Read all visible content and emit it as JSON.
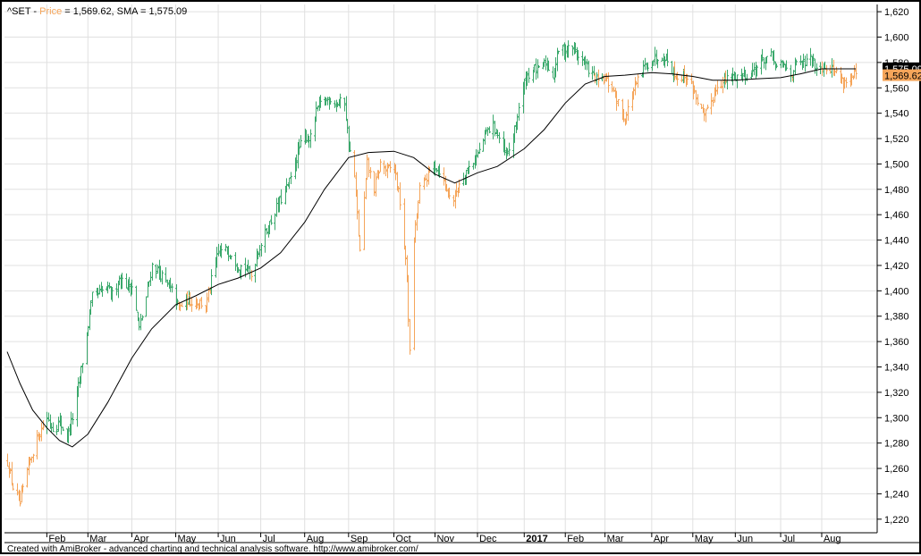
{
  "header": {
    "symbol": "^SET",
    "sep1": " - ",
    "price_label": "Price",
    "price_eq": " = 1,569.62, ",
    "sma_label": "SMA",
    "sma_eq": " = 1,575.09"
  },
  "footer_text": "Created with AmiBroker - advanced charting and technical analysis software. http://www.amibroker.com/",
  "colors": {
    "up": "#3aa86b",
    "down": "#f5a55a",
    "sma": "#000000",
    "grid": "#e0e0e0",
    "price_label": "#f5a55a"
  },
  "chart_data": {
    "type": "line",
    "chart_style": "ohlc-bars with simple moving average",
    "x_range": [
      "2016-01-04",
      "2017-08-25"
    ],
    "ylim": [
      1210,
      1625
    ],
    "y_ticks": [
      1220,
      1240,
      1260,
      1280,
      1300,
      1320,
      1340,
      1360,
      1380,
      1400,
      1420,
      1440,
      1460,
      1480,
      1500,
      1520,
      1540,
      1560,
      1580,
      1600,
      1620
    ],
    "y_tick_labels": [
      "1,220",
      "1,240",
      "1,260",
      "1,280",
      "1,300",
      "1,320",
      "1,340",
      "1,360",
      "1,380",
      "1,400",
      "1,420",
      "1,440",
      "1,460",
      "1,480",
      "1,500",
      "1,520",
      "1,540",
      "1,560",
      "1,580",
      "1,600",
      "1,620"
    ],
    "x_ticks": [
      {
        "date": "2016-02-01",
        "label": "Feb",
        "bold": false
      },
      {
        "date": "2016-03-01",
        "label": "Mar",
        "bold": false
      },
      {
        "date": "2016-04-01",
        "label": "Apr",
        "bold": false
      },
      {
        "date": "2016-05-02",
        "label": "May",
        "bold": false
      },
      {
        "date": "2016-06-01",
        "label": "Jun",
        "bold": false
      },
      {
        "date": "2016-07-01",
        "label": "Jul",
        "bold": false
      },
      {
        "date": "2016-08-01",
        "label": "Aug",
        "bold": false
      },
      {
        "date": "2016-09-01",
        "label": "Sep",
        "bold": false
      },
      {
        "date": "2016-10-03",
        "label": "Oct",
        "bold": false
      },
      {
        "date": "2016-11-01",
        "label": "Nov",
        "bold": false
      },
      {
        "date": "2016-12-01",
        "label": "Dec",
        "bold": false
      },
      {
        "date": "2017-01-03",
        "label": "2017",
        "bold": true
      },
      {
        "date": "2017-02-01",
        "label": "Feb",
        "bold": false
      },
      {
        "date": "2017-03-01",
        "label": "Mar",
        "bold": false
      },
      {
        "date": "2017-04-03",
        "label": "Apr",
        "bold": false
      },
      {
        "date": "2017-05-02",
        "label": "May",
        "bold": false
      },
      {
        "date": "2017-06-01",
        "label": "Jun",
        "bold": false
      },
      {
        "date": "2017-07-03",
        "label": "Jul",
        "bold": false
      },
      {
        "date": "2017-08-01",
        "label": "Aug",
        "bold": false
      }
    ],
    "series": [
      {
        "name": "Price",
        "last_value": 1569.62,
        "last_label": "1,569.62",
        "points": [
          {
            "x": "2016-01-04",
            "y": 1265
          },
          {
            "x": "2016-01-08",
            "y": 1245
          },
          {
            "x": "2016-01-13",
            "y": 1232
          },
          {
            "x": "2016-01-18",
            "y": 1258
          },
          {
            "x": "2016-01-22",
            "y": 1274
          },
          {
            "x": "2016-01-27",
            "y": 1289
          },
          {
            "x": "2016-02-01",
            "y": 1300
          },
          {
            "x": "2016-02-05",
            "y": 1292
          },
          {
            "x": "2016-02-10",
            "y": 1296
          },
          {
            "x": "2016-02-15",
            "y": 1285
          },
          {
            "x": "2016-02-19",
            "y": 1300
          },
          {
            "x": "2016-02-24",
            "y": 1330
          },
          {
            "x": "2016-02-29",
            "y": 1366
          },
          {
            "x": "2016-03-04",
            "y": 1395
          },
          {
            "x": "2016-03-09",
            "y": 1398
          },
          {
            "x": "2016-03-14",
            "y": 1402
          },
          {
            "x": "2016-03-18",
            "y": 1397
          },
          {
            "x": "2016-03-23",
            "y": 1410
          },
          {
            "x": "2016-03-28",
            "y": 1405
          },
          {
            "x": "2016-04-01",
            "y": 1404
          },
          {
            "x": "2016-04-06",
            "y": 1370
          },
          {
            "x": "2016-04-11",
            "y": 1395
          },
          {
            "x": "2016-04-15",
            "y": 1420
          },
          {
            "x": "2016-04-20",
            "y": 1415
          },
          {
            "x": "2016-04-25",
            "y": 1405
          },
          {
            "x": "2016-04-29",
            "y": 1400
          },
          {
            "x": "2016-05-04",
            "y": 1386
          },
          {
            "x": "2016-05-09",
            "y": 1393
          },
          {
            "x": "2016-05-13",
            "y": 1392
          },
          {
            "x": "2016-05-18",
            "y": 1392
          },
          {
            "x": "2016-05-23",
            "y": 1387
          },
          {
            "x": "2016-05-27",
            "y": 1408
          },
          {
            "x": "2016-06-01",
            "y": 1430
          },
          {
            "x": "2016-06-06",
            "y": 1432
          },
          {
            "x": "2016-06-10",
            "y": 1430
          },
          {
            "x": "2016-06-15",
            "y": 1420
          },
          {
            "x": "2016-06-20",
            "y": 1418
          },
          {
            "x": "2016-06-24",
            "y": 1412
          },
          {
            "x": "2016-06-29",
            "y": 1432
          },
          {
            "x": "2016-07-04",
            "y": 1445
          },
          {
            "x": "2016-07-08",
            "y": 1455
          },
          {
            "x": "2016-07-13",
            "y": 1468
          },
          {
            "x": "2016-07-18",
            "y": 1478
          },
          {
            "x": "2016-07-22",
            "y": 1488
          },
          {
            "x": "2016-07-27",
            "y": 1510
          },
          {
            "x": "2016-08-01",
            "y": 1522
          },
          {
            "x": "2016-08-05",
            "y": 1520
          },
          {
            "x": "2016-08-10",
            "y": 1545
          },
          {
            "x": "2016-08-15",
            "y": 1550
          },
          {
            "x": "2016-08-19",
            "y": 1551
          },
          {
            "x": "2016-08-24",
            "y": 1548
          },
          {
            "x": "2016-08-29",
            "y": 1549
          },
          {
            "x": "2016-09-01",
            "y": 1515
          },
          {
            "x": "2016-09-05",
            "y": 1490
          },
          {
            "x": "2016-09-09",
            "y": 1430
          },
          {
            "x": "2016-09-14",
            "y": 1500
          },
          {
            "x": "2016-09-19",
            "y": 1480
          },
          {
            "x": "2016-09-23",
            "y": 1500
          },
          {
            "x": "2016-09-28",
            "y": 1495
          },
          {
            "x": "2016-10-03",
            "y": 1498
          },
          {
            "x": "2016-10-07",
            "y": 1470
          },
          {
            "x": "2016-10-12",
            "y": 1410
          },
          {
            "x": "2016-10-14",
            "y": 1350
          },
          {
            "x": "2016-10-17",
            "y": 1440
          },
          {
            "x": "2016-10-21",
            "y": 1480
          },
          {
            "x": "2016-10-26",
            "y": 1490
          },
          {
            "x": "2016-10-31",
            "y": 1500
          },
          {
            "x": "2016-11-04",
            "y": 1495
          },
          {
            "x": "2016-11-09",
            "y": 1480
          },
          {
            "x": "2016-11-14",
            "y": 1472
          },
          {
            "x": "2016-11-18",
            "y": 1485
          },
          {
            "x": "2016-11-23",
            "y": 1495
          },
          {
            "x": "2016-11-28",
            "y": 1502
          },
          {
            "x": "2016-12-02",
            "y": 1510
          },
          {
            "x": "2016-12-07",
            "y": 1525
          },
          {
            "x": "2016-12-12",
            "y": 1530
          },
          {
            "x": "2016-12-16",
            "y": 1520
          },
          {
            "x": "2016-12-21",
            "y": 1505
          },
          {
            "x": "2016-12-26",
            "y": 1520
          },
          {
            "x": "2016-12-30",
            "y": 1545
          },
          {
            "x": "2017-01-04",
            "y": 1568
          },
          {
            "x": "2017-01-09",
            "y": 1575
          },
          {
            "x": "2017-01-13",
            "y": 1573
          },
          {
            "x": "2017-01-18",
            "y": 1580
          },
          {
            "x": "2017-01-23",
            "y": 1570
          },
          {
            "x": "2017-01-27",
            "y": 1590
          },
          {
            "x": "2017-02-01",
            "y": 1590
          },
          {
            "x": "2017-02-06",
            "y": 1592
          },
          {
            "x": "2017-02-10",
            "y": 1586
          },
          {
            "x": "2017-02-15",
            "y": 1578
          },
          {
            "x": "2017-02-20",
            "y": 1570
          },
          {
            "x": "2017-02-24",
            "y": 1565
          },
          {
            "x": "2017-03-01",
            "y": 1566
          },
          {
            "x": "2017-03-06",
            "y": 1560
          },
          {
            "x": "2017-03-10",
            "y": 1548
          },
          {
            "x": "2017-03-15",
            "y": 1535
          },
          {
            "x": "2017-03-20",
            "y": 1555
          },
          {
            "x": "2017-03-24",
            "y": 1565
          },
          {
            "x": "2017-03-29",
            "y": 1577
          },
          {
            "x": "2017-04-03",
            "y": 1582
          },
          {
            "x": "2017-04-07",
            "y": 1585
          },
          {
            "x": "2017-04-12",
            "y": 1585
          },
          {
            "x": "2017-04-17",
            "y": 1575
          },
          {
            "x": "2017-04-21",
            "y": 1568
          },
          {
            "x": "2017-04-26",
            "y": 1570
          },
          {
            "x": "2017-05-01",
            "y": 1562
          },
          {
            "x": "2017-05-05",
            "y": 1550
          },
          {
            "x": "2017-05-10",
            "y": 1536
          },
          {
            "x": "2017-05-15",
            "y": 1550
          },
          {
            "x": "2017-05-19",
            "y": 1563
          },
          {
            "x": "2017-05-24",
            "y": 1565
          },
          {
            "x": "2017-05-29",
            "y": 1568
          },
          {
            "x": "2017-06-02",
            "y": 1570
          },
          {
            "x": "2017-06-07",
            "y": 1570
          },
          {
            "x": "2017-06-12",
            "y": 1572
          },
          {
            "x": "2017-06-16",
            "y": 1577
          },
          {
            "x": "2017-06-21",
            "y": 1583
          },
          {
            "x": "2017-06-26",
            "y": 1585
          },
          {
            "x": "2017-06-30",
            "y": 1576
          },
          {
            "x": "2017-07-05",
            "y": 1578
          },
          {
            "x": "2017-07-10",
            "y": 1571
          },
          {
            "x": "2017-07-14",
            "y": 1578
          },
          {
            "x": "2017-07-19",
            "y": 1579
          },
          {
            "x": "2017-07-24",
            "y": 1582
          },
          {
            "x": "2017-07-28",
            "y": 1577
          },
          {
            "x": "2017-08-02",
            "y": 1578
          },
          {
            "x": "2017-08-07",
            "y": 1576
          },
          {
            "x": "2017-08-11",
            "y": 1572
          },
          {
            "x": "2017-08-16",
            "y": 1565
          },
          {
            "x": "2017-08-21",
            "y": 1567
          },
          {
            "x": "2017-08-25",
            "y": 1570
          }
        ]
      },
      {
        "name": "SMA",
        "last_value": 1575.09,
        "last_label": "1,575.09",
        "points": [
          {
            "x": "2016-01-04",
            "y": 1352
          },
          {
            "x": "2016-01-13",
            "y": 1327
          },
          {
            "x": "2016-01-22",
            "y": 1306
          },
          {
            "x": "2016-02-01",
            "y": 1292
          },
          {
            "x": "2016-02-10",
            "y": 1282
          },
          {
            "x": "2016-02-19",
            "y": 1277
          },
          {
            "x": "2016-03-01",
            "y": 1287
          },
          {
            "x": "2016-03-15",
            "y": 1312
          },
          {
            "x": "2016-04-01",
            "y": 1347
          },
          {
            "x": "2016-04-15",
            "y": 1370
          },
          {
            "x": "2016-05-02",
            "y": 1389
          },
          {
            "x": "2016-05-16",
            "y": 1396
          },
          {
            "x": "2016-06-01",
            "y": 1405
          },
          {
            "x": "2016-06-15",
            "y": 1410
          },
          {
            "x": "2016-07-01",
            "y": 1418
          },
          {
            "x": "2016-07-15",
            "y": 1430
          },
          {
            "x": "2016-08-01",
            "y": 1454
          },
          {
            "x": "2016-08-15",
            "y": 1480
          },
          {
            "x": "2016-09-01",
            "y": 1505
          },
          {
            "x": "2016-09-15",
            "y": 1509
          },
          {
            "x": "2016-10-03",
            "y": 1510
          },
          {
            "x": "2016-10-17",
            "y": 1505
          },
          {
            "x": "2016-11-01",
            "y": 1492
          },
          {
            "x": "2016-11-15",
            "y": 1485
          },
          {
            "x": "2016-12-01",
            "y": 1493
          },
          {
            "x": "2016-12-15",
            "y": 1498
          },
          {
            "x": "2017-01-03",
            "y": 1512
          },
          {
            "x": "2017-01-17",
            "y": 1527
          },
          {
            "x": "2017-02-01",
            "y": 1548
          },
          {
            "x": "2017-02-15",
            "y": 1563
          },
          {
            "x": "2017-03-01",
            "y": 1569
          },
          {
            "x": "2017-03-15",
            "y": 1570
          },
          {
            "x": "2017-04-03",
            "y": 1572
          },
          {
            "x": "2017-04-17",
            "y": 1571
          },
          {
            "x": "2017-05-02",
            "y": 1569
          },
          {
            "x": "2017-05-16",
            "y": 1566
          },
          {
            "x": "2017-06-01",
            "y": 1566
          },
          {
            "x": "2017-06-15",
            "y": 1567
          },
          {
            "x": "2017-07-03",
            "y": 1568
          },
          {
            "x": "2017-07-17",
            "y": 1571
          },
          {
            "x": "2017-08-01",
            "y": 1575
          },
          {
            "x": "2017-08-25",
            "y": 1575
          }
        ]
      }
    ],
    "grid": true,
    "value_labels_position": "right axis"
  }
}
